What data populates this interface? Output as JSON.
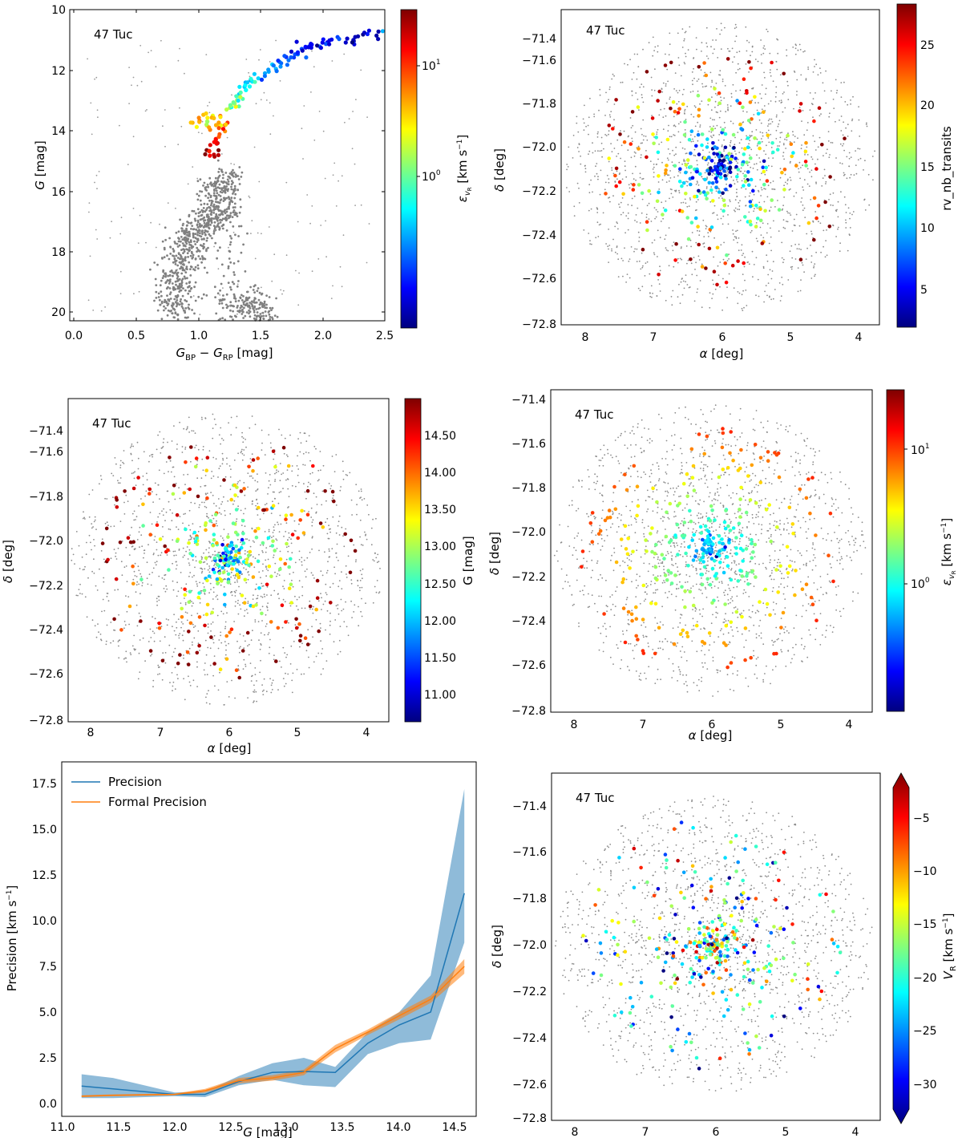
{
  "figure": {
    "cluster_label": "47 Tuc",
    "colorscale": [
      "#00007f",
      "#0000ff",
      "#007fff",
      "#00ffff",
      "#7fff7f",
      "#ffff00",
      "#ff7f00",
      "#ff0000",
      "#7f0000"
    ]
  },
  "chart_data": [
    {
      "type": "scatter",
      "panel": "cmd",
      "label": "47 Tuc",
      "xlabel": "G_BP − G_RP [mag]",
      "ylabel": "G [mag]",
      "xlim": [
        0.0,
        2.5
      ],
      "ylim": [
        20.5,
        10.0
      ],
      "y_inverted": true,
      "xticks": [
        "0.0",
        "0.5",
        "1.0",
        "1.5",
        "2.0",
        "2.5"
      ],
      "yticks": [
        "10",
        "12",
        "14",
        "16",
        "18",
        "20"
      ],
      "colorbar": {
        "label": "ε_vR [km s⁻¹]",
        "scale": "log",
        "range": [
          0.1,
          30
        ],
        "ticks": [
          "10^0",
          "10^1"
        ]
      },
      "series": [
        {
          "role": "background",
          "color": "#808080",
          "points": [
            [
              0.8,
              20.4
            ],
            [
              0.82,
              19.6
            ],
            [
              0.85,
              18.9
            ],
            [
              0.9,
              18.2
            ],
            [
              0.95,
              17.6
            ],
            [
              1.05,
              17.2
            ],
            [
              1.15,
              16.9
            ],
            [
              1.18,
              16.2
            ],
            [
              1.2,
              15.6
            ],
            [
              1.25,
              20.2
            ],
            [
              1.4,
              19.8
            ],
            [
              1.55,
              20.3
            ]
          ]
        },
        {
          "role": "colored",
          "color_quantity": "ε_vR",
          "points": [
            [
              1.1,
              14.9,
              20
            ],
            [
              1.12,
              14.6,
              18
            ],
            [
              1.15,
              14.3,
              14
            ],
            [
              1.2,
              13.9,
              6
            ],
            [
              1.05,
              13.9,
              3
            ],
            [
              0.95,
              13.8,
              8
            ],
            [
              1.25,
              13.4,
              3
            ],
            [
              1.3,
              13.1,
              2
            ],
            [
              1.35,
              12.8,
              1
            ],
            [
              1.4,
              12.5,
              0.8
            ],
            [
              1.5,
              12.2,
              0.6
            ],
            [
              1.6,
              11.9,
              0.4
            ],
            [
              1.7,
              11.6,
              0.3
            ],
            [
              1.8,
              11.4,
              0.25
            ],
            [
              1.9,
              11.2,
              0.2
            ],
            [
              2.0,
              11.1,
              0.18
            ],
            [
              2.15,
              11.0,
              0.2
            ],
            [
              2.3,
              10.9,
              0.15
            ],
            [
              2.47,
              10.85,
              0.2
            ]
          ]
        }
      ]
    },
    {
      "type": "scatter",
      "panel": "sky-nb-transits",
      "label": "47 Tuc",
      "xlabel": "α [deg]",
      "ylabel": "δ [deg]",
      "xlim": [
        8.3,
        3.7
      ],
      "ylim": [
        -72.8,
        -71.35
      ],
      "x_inverted": true,
      "xticks": [
        "8",
        "7",
        "6",
        "5",
        "4"
      ],
      "yticks": [
        "−71.4",
        "−71.6",
        "−71.8",
        "−72.0",
        "−72.2",
        "−72.4",
        "−72.6",
        "−72.8"
      ],
      "colorbar": {
        "label": "rv_nb_transits",
        "scale": "linear",
        "range": [
          2,
          28
        ],
        "ticks": [
          "5",
          "10",
          "15",
          "20",
          "25"
        ]
      },
      "center": [
        6.02,
        -72.08
      ],
      "color_trend": "core ~5 transits, outer ~25 transits"
    },
    {
      "type": "scatter",
      "panel": "sky-g-mag",
      "label": "47 Tuc",
      "xlabel": "α [deg]",
      "ylabel": "δ [deg]",
      "xlim": [
        8.3,
        3.7
      ],
      "ylim": [
        -72.8,
        -71.35
      ],
      "x_inverted": true,
      "xticks": [
        "8",
        "7",
        "6",
        "5",
        "4"
      ],
      "yticks": [
        "−71.4",
        "−71.6",
        "−71.8",
        "−72.0",
        "−72.2",
        "−72.4",
        "−72.6",
        "−72.8"
      ],
      "colorbar": {
        "label": "G [mag]",
        "scale": "linear",
        "range": [
          10.6,
          14.95
        ],
        "ticks": [
          "11.00",
          "11.50",
          "12.00",
          "12.50",
          "13.00",
          "13.50",
          "14.00",
          "14.50"
        ]
      },
      "center": [
        6.02,
        -72.08
      ],
      "color_trend": "core ~12.0 mag, outer ~14.3 mag"
    },
    {
      "type": "scatter",
      "panel": "sky-evr",
      "label": "47 Tuc",
      "xlabel": "α [deg]",
      "ylabel": "δ [deg]",
      "xlim": [
        8.3,
        3.7
      ],
      "ylim": [
        -72.8,
        -71.35
      ],
      "x_inverted": true,
      "xticks": [
        "8",
        "7",
        "6",
        "5",
        "4"
      ],
      "yticks": [
        "−71.4",
        "−71.6",
        "−71.8",
        "−72.0",
        "−72.2",
        "−72.4",
        "−72.6",
        "−72.8"
      ],
      "colorbar": {
        "label": "ε_vR [km s⁻¹]",
        "scale": "log",
        "range": [
          0.1,
          30
        ],
        "ticks": [
          "10^0",
          "10^1"
        ]
      },
      "center": [
        6.02,
        -72.08
      ],
      "color_trend": "core ~1 km/s, outer ~5 km/s"
    },
    {
      "type": "line",
      "panel": "precision",
      "xlabel": "G [mag]",
      "ylabel": "Precision [km s⁻¹]",
      "xlim": [
        11.0,
        14.7
      ],
      "ylim": [
        -0.5,
        17.8
      ],
      "xticks": [
        "11.0",
        "11.5",
        "12.0",
        "12.5",
        "13.0",
        "13.5",
        "14.0",
        "14.5"
      ],
      "yticks": [
        "0.0",
        "2.5",
        "5.0",
        "7.5",
        "10.0",
        "12.5",
        "15.0",
        "17.5"
      ],
      "legend_position": "top-left",
      "x": [
        11.17,
        11.45,
        12.0,
        12.27,
        12.57,
        12.87,
        13.15,
        13.43,
        13.72,
        14.0,
        14.28,
        14.58
      ],
      "series": [
        {
          "name": "Precision",
          "color": "#1f77b4",
          "values": [
            0.95,
            0.8,
            0.5,
            0.5,
            1.2,
            1.7,
            1.75,
            1.7,
            3.3,
            4.3,
            5.0,
            11.5
          ],
          "lower": [
            0.3,
            0.3,
            0.4,
            0.35,
            1.0,
            1.3,
            1.0,
            0.9,
            2.7,
            3.3,
            3.5,
            8.8
          ],
          "upper": [
            1.6,
            1.4,
            0.6,
            0.65,
            1.5,
            2.2,
            2.5,
            2.0,
            3.9,
            5.0,
            7.0,
            17.2
          ]
        },
        {
          "name": "Formal Precision",
          "color": "#ff7f0e",
          "values": [
            0.4,
            0.45,
            0.5,
            0.7,
            1.25,
            1.4,
            1.7,
            3.0,
            3.9,
            4.8,
            5.7,
            7.5
          ],
          "lower": [
            0.35,
            0.4,
            0.45,
            0.6,
            1.1,
            1.25,
            1.55,
            2.8,
            3.75,
            4.6,
            5.5,
            7.1
          ],
          "upper": [
            0.45,
            0.5,
            0.55,
            0.8,
            1.4,
            1.55,
            1.85,
            3.2,
            4.05,
            5.0,
            5.9,
            7.9
          ]
        }
      ]
    },
    {
      "type": "scatter",
      "panel": "sky-vr",
      "label": "47 Tuc",
      "xlabel": "α [deg]",
      "ylabel": "δ [deg]",
      "xlim": [
        8.3,
        3.7
      ],
      "ylim": [
        -72.8,
        -71.35
      ],
      "x_inverted": true,
      "xticks": [
        "8",
        "7",
        "6",
        "5",
        "4"
      ],
      "yticks": [
        "−71.4",
        "−71.6",
        "−71.8",
        "−72.0",
        "−72.2",
        "−72.4",
        "−72.6",
        "−72.8"
      ],
      "colorbar": {
        "label": "V_R [km s⁻¹]",
        "scale": "linear",
        "range": [
          -32,
          -2
        ],
        "ticks": [
          "−5",
          "−10",
          "−15",
          "−20",
          "−25",
          "−30"
        ],
        "extend": "both"
      },
      "center": [
        6.02,
        -72.08
      ],
      "color_trend": "mixed velocities around −18 km/s"
    }
  ]
}
